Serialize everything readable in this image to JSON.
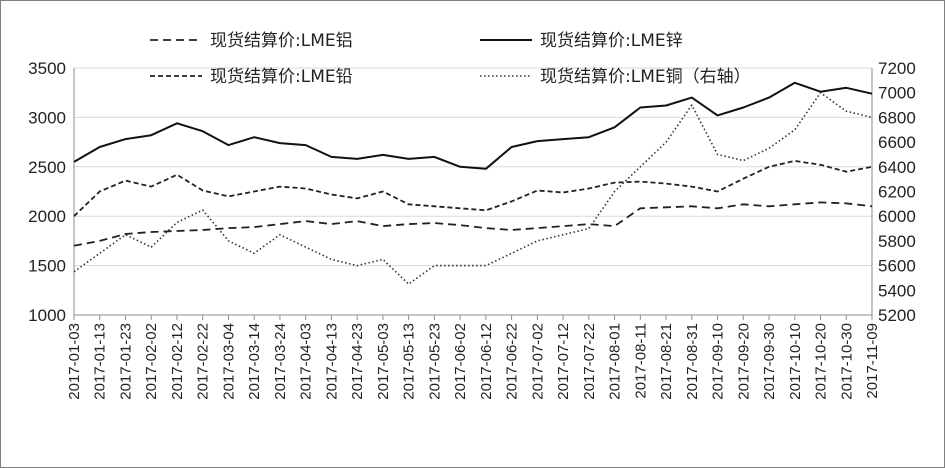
{
  "chart_data": {
    "type": "line",
    "title": "",
    "xlabel": "",
    "ylabel": "",
    "y_left": {
      "ticks": [
        1000,
        1500,
        2000,
        2500,
        3000,
        3500
      ],
      "ylim": [
        1000,
        3500
      ]
    },
    "y_right": {
      "ticks": [
        5200,
        5400,
        5600,
        5800,
        6000,
        6200,
        6400,
        6600,
        6800,
        7000,
        7200
      ],
      "ylim": [
        5200,
        7200
      ]
    },
    "grid": "horizontal",
    "legend_placement": "top",
    "x_tick_labels": [
      "2017-01-03",
      "2017-01-13",
      "2017-01-23",
      "2017-02-02",
      "2017-02-12",
      "2017-02-22",
      "2017-03-04",
      "2017-03-14",
      "2017-03-24",
      "2017-04-03",
      "2017-04-13",
      "2017-04-23",
      "2017-05-03",
      "2017-05-13",
      "2017-05-23",
      "2017-06-02",
      "2017-06-12",
      "2017-06-22",
      "2017-07-02",
      "2017-07-12",
      "2017-07-22",
      "2017-08-01",
      "2017-08-11",
      "2017-08-21",
      "2017-08-31",
      "2017-09-10",
      "2017-09-20",
      "2017-09-30",
      "2017-10-10",
      "2017-10-20",
      "2017-10-30",
      "2017-11-09"
    ],
    "series": [
      {
        "name": "现货结算价:LME铝",
        "axis": "left",
        "style": "long-dash",
        "color": "#222222",
        "values": [
          1700,
          1750,
          1820,
          1840,
          1850,
          1860,
          1880,
          1890,
          1920,
          1950,
          1920,
          1950,
          1900,
          1920,
          1930,
          1910,
          1880,
          1860,
          1880,
          1900,
          1920,
          1900,
          2080,
          2090,
          2100,
          2080,
          2120,
          2100,
          2120,
          2140,
          2130,
          2100
        ]
      },
      {
        "name": "现货结算价:LME锌",
        "axis": "left",
        "style": "solid",
        "color": "#111111",
        "values": [
          2550,
          2700,
          2780,
          2820,
          2940,
          2860,
          2720,
          2800,
          2740,
          2720,
          2600,
          2580,
          2620,
          2580,
          2600,
          2500,
          2480,
          2700,
          2760,
          2780,
          2800,
          2900,
          3100,
          3120,
          3200,
          3020,
          3100,
          3200,
          3350,
          3260,
          3300,
          3240
        ]
      },
      {
        "name": "现货结算价:LME铅",
        "axis": "left",
        "style": "short-dash",
        "color": "#222222",
        "values": [
          2000,
          2250,
          2360,
          2300,
          2420,
          2260,
          2200,
          2250,
          2300,
          2280,
          2220,
          2180,
          2250,
          2120,
          2100,
          2080,
          2060,
          2150,
          2260,
          2240,
          2280,
          2340,
          2350,
          2330,
          2300,
          2250,
          2380,
          2500,
          2560,
          2520,
          2450,
          2500
        ]
      },
      {
        "name": "现货结算价:LME铜（右轴）",
        "axis": "right",
        "style": "dotted",
        "color": "#333333",
        "values": [
          5550,
          5700,
          5850,
          5750,
          5950,
          6050,
          5800,
          5700,
          5850,
          5750,
          5650,
          5600,
          5650,
          5450,
          5600,
          5600,
          5600,
          5700,
          5800,
          5850,
          5900,
          6200,
          6400,
          6600,
          6900,
          6500,
          6450,
          6550,
          6700,
          7000,
          6850,
          6800
        ]
      }
    ]
  }
}
